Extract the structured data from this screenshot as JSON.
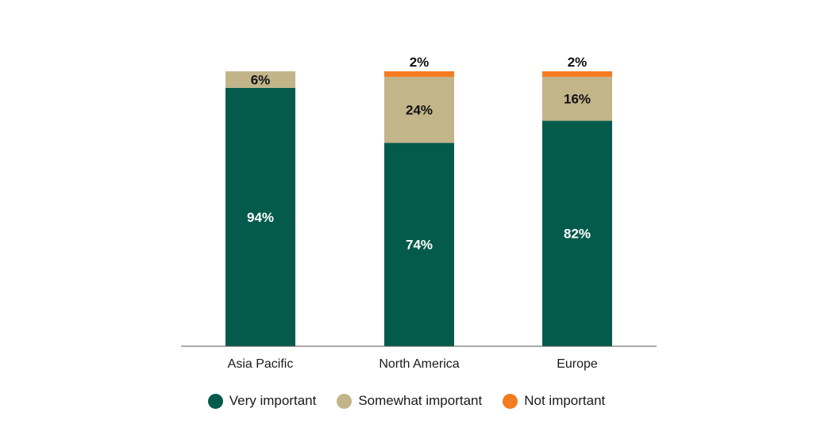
{
  "chart_data": {
    "type": "bar",
    "stacked": true,
    "categories": [
      "Asia Pacific",
      "North America",
      "Europe"
    ],
    "series": [
      {
        "name": "Very important",
        "color": "#045b4c",
        "values": [
          94,
          74,
          82
        ],
        "labels": [
          "94%",
          "74%",
          "82%"
        ]
      },
      {
        "name": "Somewhat important",
        "color": "#c2b58a",
        "values": [
          6,
          24,
          16
        ],
        "labels": [
          "6%",
          "24%",
          "16%"
        ]
      },
      {
        "name": "Not important",
        "color": "#f47b20",
        "values": [
          0,
          2,
          2
        ],
        "labels": [
          "",
          "2%",
          "2%"
        ]
      }
    ],
    "ylim": [
      0,
      100
    ],
    "grid": false,
    "legend_position": "bottom"
  }
}
